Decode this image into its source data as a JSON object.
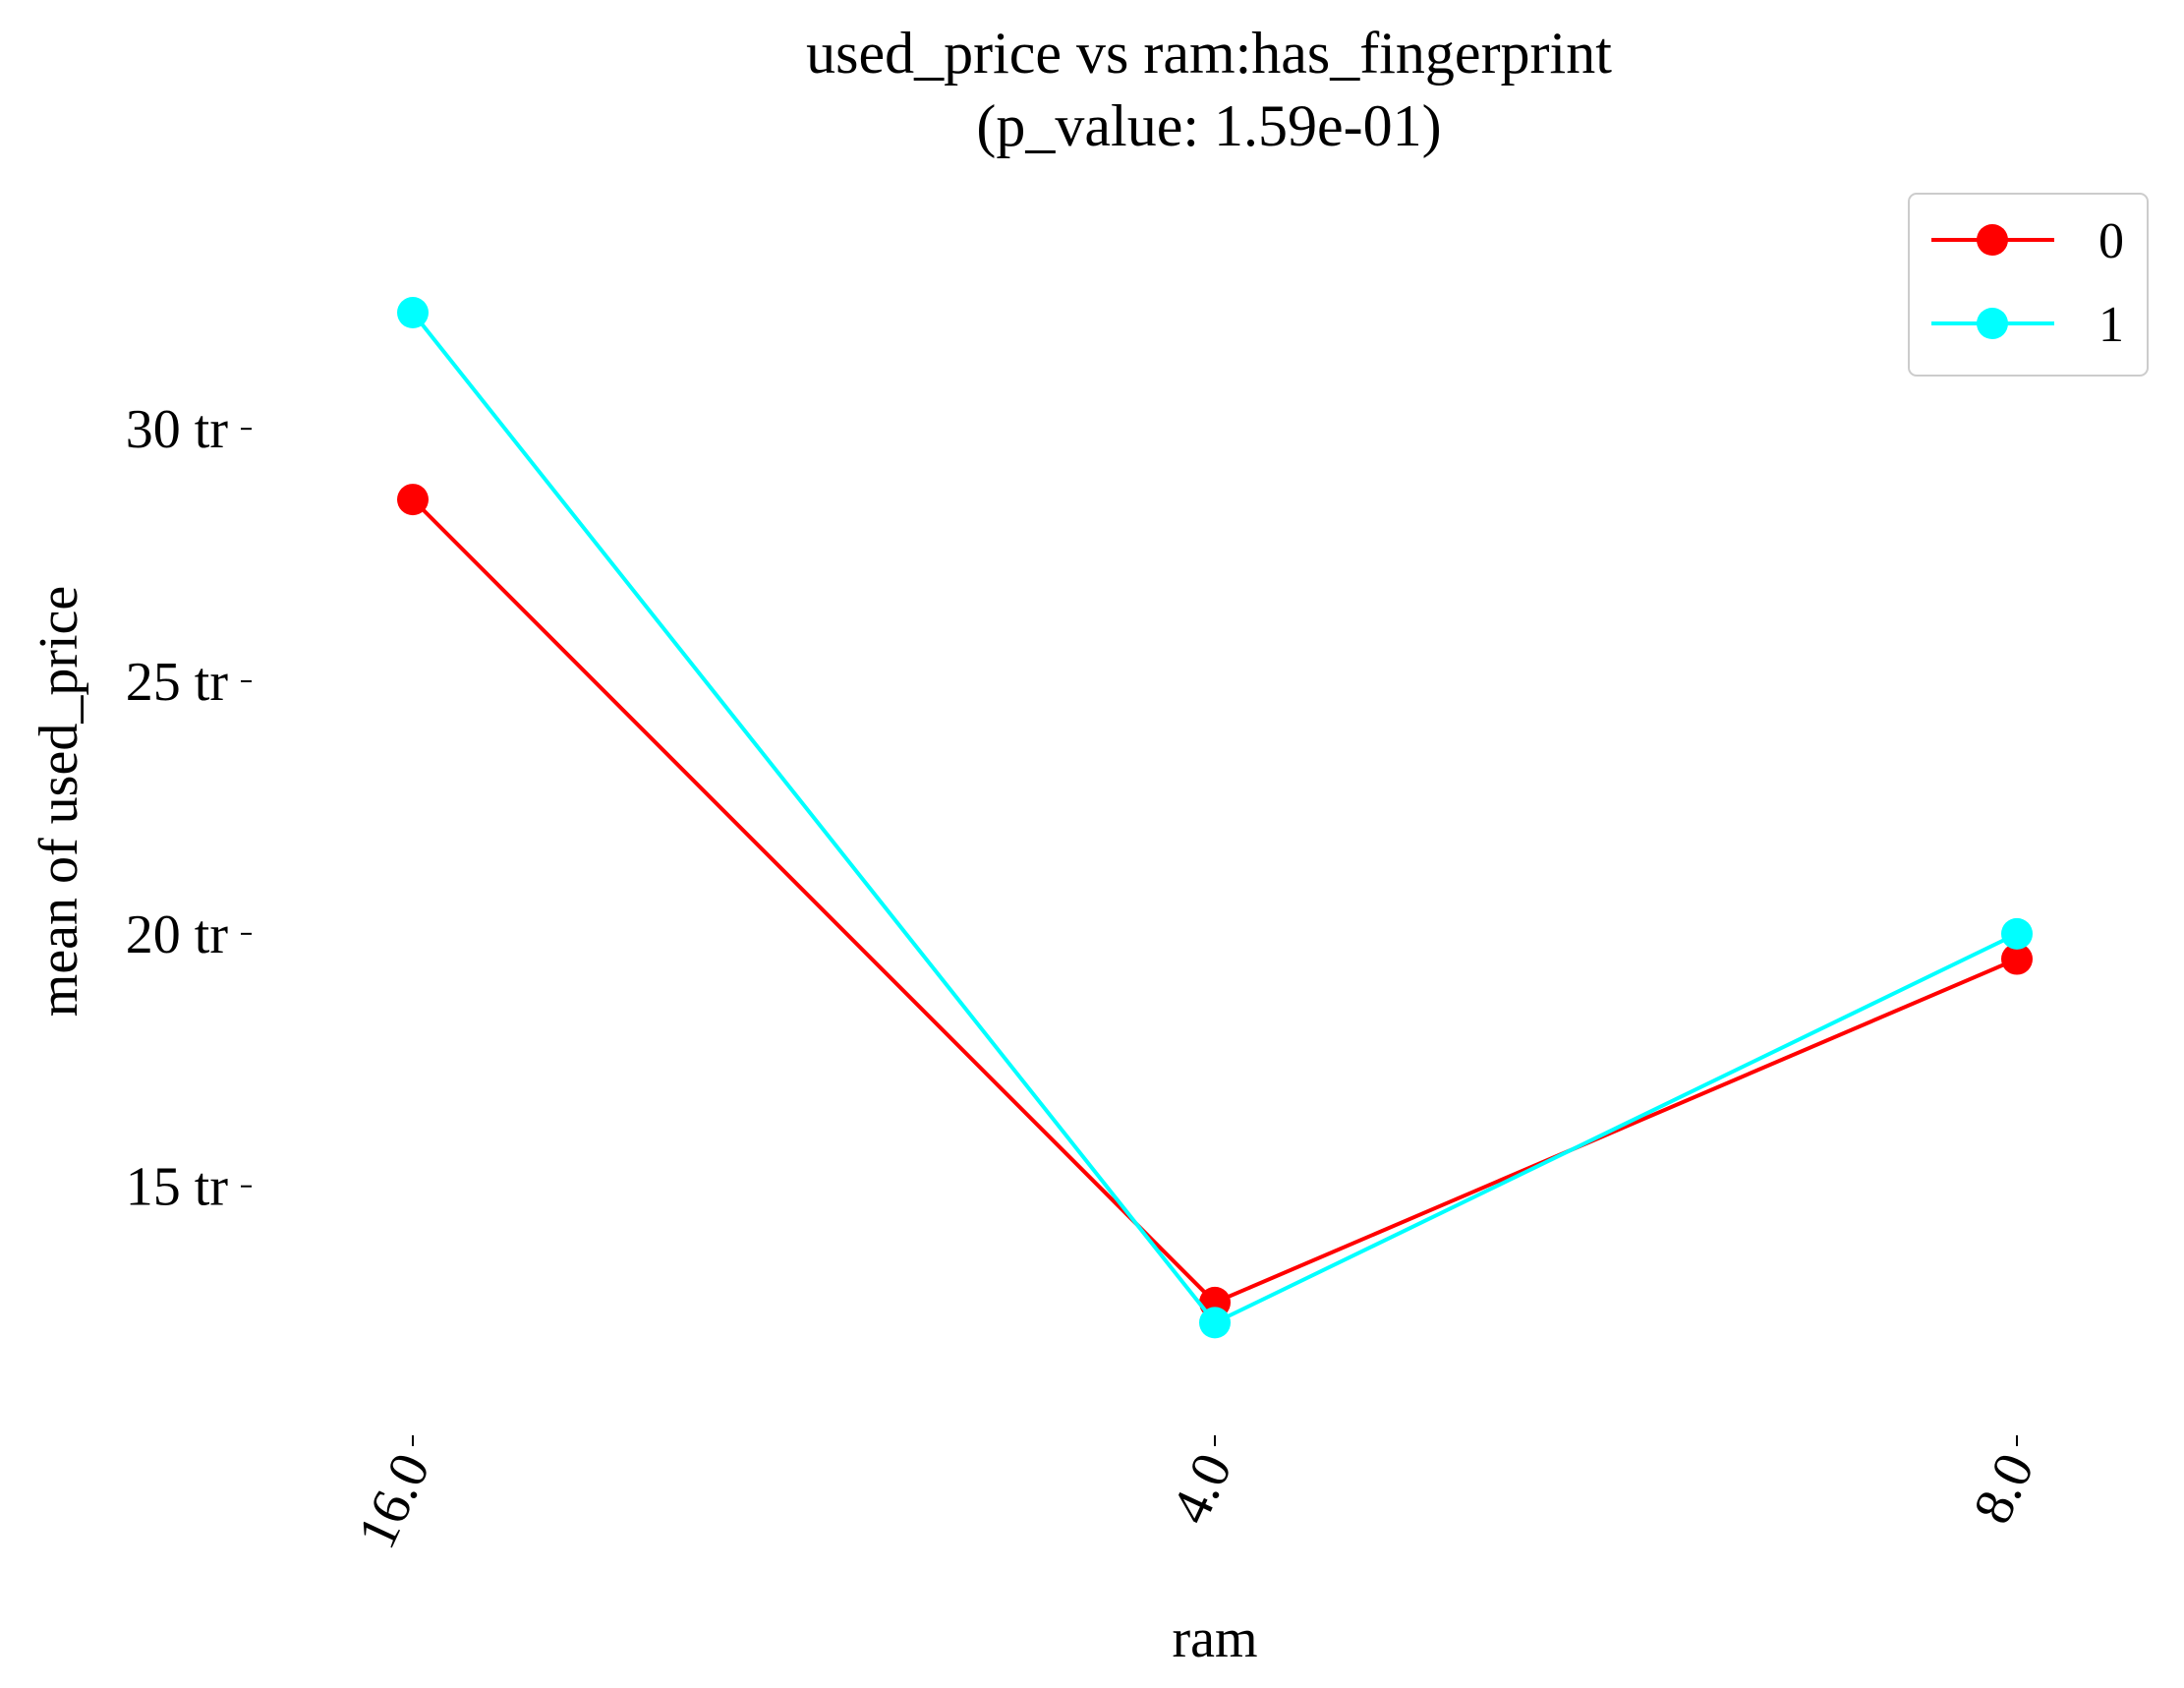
{
  "chart_data": {
    "type": "line",
    "title": "used_price vs ram:has_fingerprint",
    "subtitle": "(p_value: 1.59e-01)",
    "xlabel": "ram",
    "ylabel": "mean of used_price",
    "categories": [
      "16.0",
      "4.0",
      "8.0"
    ],
    "y_ticks": [
      15,
      20,
      25,
      30
    ],
    "y_tick_labels": [
      "15 tr",
      "20 tr",
      "25 tr",
      "30 tr"
    ],
    "ylim": [
      10.4,
      34.5
    ],
    "grid": false,
    "legend_position": "top-right",
    "series": [
      {
        "name": "0",
        "color": "#ff0000",
        "values": [
          28.6,
          12.7,
          19.5
        ]
      },
      {
        "name": "1",
        "color": "#00ffff",
        "values": [
          32.3,
          12.3,
          20.0
        ]
      }
    ]
  }
}
